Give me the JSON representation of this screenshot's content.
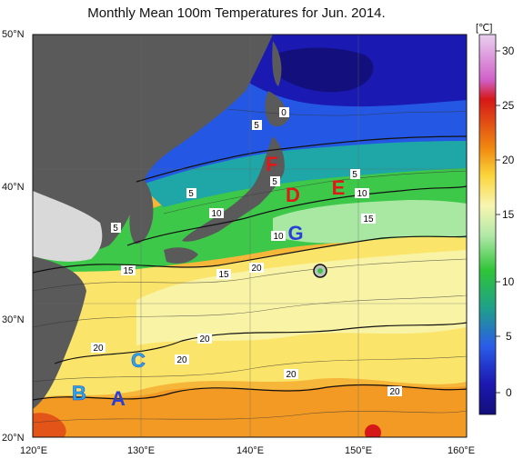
{
  "title": "Monthly Mean 100m Temperatures for Jun. 2014.",
  "colorbar": {
    "unit": "[℃]",
    "ticks": [
      "30",
      "25",
      "20",
      "15",
      "10",
      "5",
      "0"
    ],
    "colors": [
      "#e2a0e6",
      "#d01818",
      "#ee7f10",
      "#fbd23a",
      "#f4f3a8",
      "#a4e8a0",
      "#36c43a",
      "#1e8e8a",
      "#2450e6",
      "#1e1ab0",
      "#0f0e7a"
    ]
  },
  "axes": {
    "lat_labels": [
      "50°N",
      "40°N",
      "30°N",
      "20°N"
    ],
    "lon_labels": [
      "120°E",
      "130°E",
      "140°E",
      "150°E",
      "160°E"
    ]
  },
  "contour_labels": [
    "0",
    "5",
    "5",
    "5",
    "5",
    "5",
    "10",
    "10",
    "10",
    "15",
    "15",
    "15",
    "20",
    "20",
    "20",
    "20",
    "20",
    "20"
  ],
  "region_letters": [
    "A",
    "B",
    "C",
    "D",
    "E",
    "F",
    "G"
  ],
  "colors": {
    "land": "#5a5a5a",
    "land_light": "#d8d8d8",
    "letter_red": "#e01818",
    "letter_blue": "#2a3fd6",
    "letter_cyan": "#27a8e0"
  }
}
